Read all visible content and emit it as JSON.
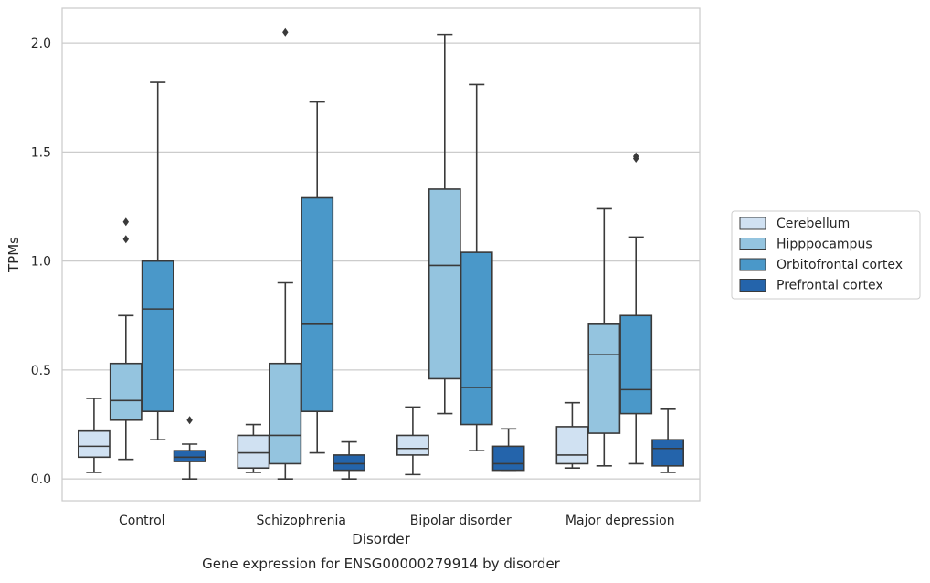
{
  "chart_data": {
    "type": "boxplot",
    "caption": "Gene expression for ENSG00000279914 by disorder",
    "xlabel": "Disorder",
    "ylabel": "TPMs",
    "ylim": [
      -0.1,
      2.16
    ],
    "yticks": [
      0.0,
      0.5,
      1.0,
      1.5,
      2.0
    ],
    "ytick_labels": [
      "0.0",
      "0.5",
      "1.0",
      "1.5",
      "2.0"
    ],
    "categories": [
      "Control",
      "Schizophrenia",
      "Bipolar disorder",
      "Major depression"
    ],
    "grid": "horizontal",
    "legend_position": "right",
    "series": [
      {
        "name": "Cerebellum",
        "color": "#d0e1f2",
        "boxes": [
          {
            "whislo": 0.03,
            "q1": 0.1,
            "med": 0.15,
            "q3": 0.22,
            "whishi": 0.37,
            "fliers": []
          },
          {
            "whislo": 0.03,
            "q1": 0.05,
            "med": 0.12,
            "q3": 0.2,
            "whishi": 0.25,
            "fliers": []
          },
          {
            "whislo": 0.02,
            "q1": 0.11,
            "med": 0.14,
            "q3": 0.2,
            "whishi": 0.33,
            "fliers": []
          },
          {
            "whislo": 0.05,
            "q1": 0.07,
            "med": 0.11,
            "q3": 0.24,
            "whishi": 0.35,
            "fliers": []
          }
        ]
      },
      {
        "name": "Hipppocampus",
        "color": "#94c4df",
        "boxes": [
          {
            "whislo": 0.09,
            "q1": 0.27,
            "med": 0.36,
            "q3": 0.53,
            "whishi": 0.75,
            "fliers": [
              1.1,
              1.18
            ]
          },
          {
            "whislo": 0.0,
            "q1": 0.07,
            "med": 0.2,
            "q3": 0.53,
            "whishi": 0.9,
            "fliers": [
              2.05
            ]
          },
          {
            "whislo": 0.3,
            "q1": 0.46,
            "med": 0.98,
            "q3": 1.33,
            "whishi": 2.04,
            "fliers": []
          },
          {
            "whislo": 0.06,
            "q1": 0.21,
            "med": 0.57,
            "q3": 0.71,
            "whishi": 1.24,
            "fliers": []
          }
        ]
      },
      {
        "name": "Orbitofrontal cortex",
        "color": "#4a98c9",
        "boxes": [
          {
            "whislo": 0.18,
            "q1": 0.31,
            "med": 0.78,
            "q3": 1.0,
            "whishi": 1.82,
            "fliers": []
          },
          {
            "whislo": 0.12,
            "q1": 0.31,
            "med": 0.71,
            "q3": 1.29,
            "whishi": 1.73,
            "fliers": []
          },
          {
            "whislo": 0.13,
            "q1": 0.25,
            "med": 0.42,
            "q3": 1.04,
            "whishi": 1.81,
            "fliers": []
          },
          {
            "whislo": 0.07,
            "q1": 0.3,
            "med": 0.41,
            "q3": 0.75,
            "whishi": 1.11,
            "fliers": [
              1.47,
              1.48
            ]
          }
        ]
      },
      {
        "name": "Prefrontal cortex",
        "color": "#2464ab",
        "boxes": [
          {
            "whislo": 0.0,
            "q1": 0.08,
            "med": 0.1,
            "q3": 0.13,
            "whishi": 0.16,
            "fliers": [
              0.27
            ]
          },
          {
            "whislo": 0.0,
            "q1": 0.04,
            "med": 0.07,
            "q3": 0.11,
            "whishi": 0.17,
            "fliers": []
          },
          {
            "whislo": 0.04,
            "q1": 0.04,
            "med": 0.07,
            "q3": 0.15,
            "whishi": 0.23,
            "fliers": []
          },
          {
            "whislo": 0.03,
            "q1": 0.06,
            "med": 0.14,
            "q3": 0.18,
            "whishi": 0.32,
            "fliers": []
          }
        ]
      }
    ]
  }
}
